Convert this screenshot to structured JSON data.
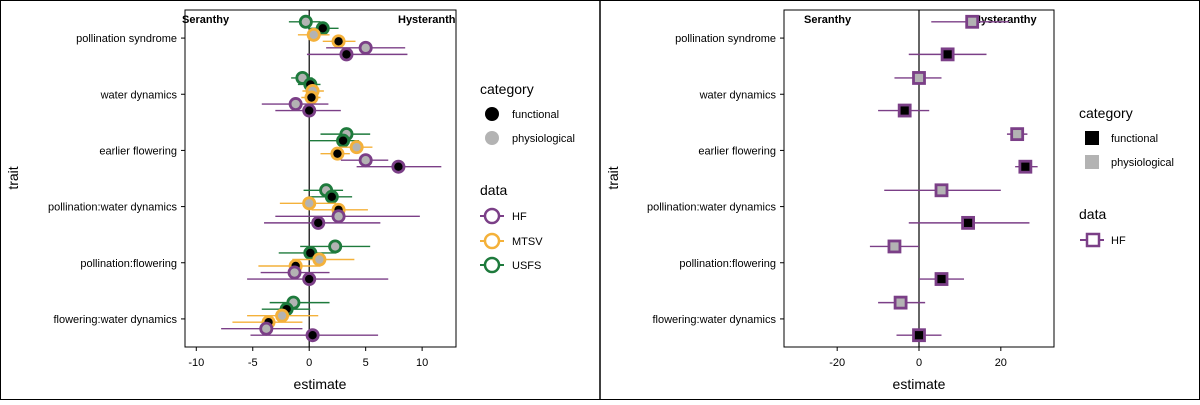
{
  "colors": {
    "HF": "#7b3f87",
    "MTSV": "#f4b13a",
    "USFS": "#1e7a3c",
    "functional_key": "#000000",
    "physiological_key": "#b3b3b3"
  },
  "chart_data": [
    {
      "type": "scatter",
      "panel": "left",
      "xlabel": "estimate",
      "ylabel": "trait",
      "xlim": [
        -11,
        13
      ],
      "xticks": [
        -10,
        -5,
        0,
        5,
        10
      ],
      "categories": [
        "pollination syndrome",
        "water dynamics",
        "earlier flowering",
        "pollination:water dynamics",
        "pollination:flowering",
        "flowering:water dynamics"
      ],
      "annotations": {
        "left": "Seranthy",
        "right": "Hysteranth"
      },
      "legend": {
        "category_title": "category",
        "category_items": [
          "functional",
          "physiological"
        ],
        "data_title": "data",
        "data_items": [
          "HF",
          "MTSV",
          "USFS"
        ]
      },
      "marker": "circle",
      "points": [
        {
          "trait": 0,
          "dataset": "USFS",
          "category": "physiological",
          "est": -0.3,
          "lo": -1.8,
          "hi": 1.0
        },
        {
          "trait": 0,
          "dataset": "USFS",
          "category": "functional",
          "est": 1.2,
          "lo": -0.1,
          "hi": 2.6
        },
        {
          "trait": 0,
          "dataset": "MTSV",
          "category": "physiological",
          "est": 0.4,
          "lo": -1.0,
          "hi": 1.8
        },
        {
          "trait": 0,
          "dataset": "MTSV",
          "category": "functional",
          "est": 2.6,
          "lo": 1.2,
          "hi": 4.1
        },
        {
          "trait": 0,
          "dataset": "HF",
          "category": "physiological",
          "est": 5.0,
          "lo": 1.5,
          "hi": 8.5
        },
        {
          "trait": 0,
          "dataset": "HF",
          "category": "functional",
          "est": 3.3,
          "lo": -0.2,
          "hi": 8.7
        },
        {
          "trait": 1,
          "dataset": "USFS",
          "category": "physiological",
          "est": -0.6,
          "lo": -1.6,
          "hi": 0.3
        },
        {
          "trait": 1,
          "dataset": "USFS",
          "category": "functional",
          "est": 0.1,
          "lo": -1.0,
          "hi": 1.0
        },
        {
          "trait": 1,
          "dataset": "MTSV",
          "category": "physiological",
          "est": 0.3,
          "lo": -0.6,
          "hi": 1.3
        },
        {
          "trait": 1,
          "dataset": "MTSV",
          "category": "functional",
          "est": 0.2,
          "lo": -0.7,
          "hi": 1.0
        },
        {
          "trait": 1,
          "dataset": "HF",
          "category": "physiological",
          "est": -1.2,
          "lo": -4.2,
          "hi": 1.7
        },
        {
          "trait": 1,
          "dataset": "HF",
          "category": "functional",
          "est": 0.0,
          "lo": -3.0,
          "hi": 2.8
        },
        {
          "trait": 2,
          "dataset": "USFS",
          "category": "physiological",
          "est": 3.3,
          "lo": 1.0,
          "hi": 5.4
        },
        {
          "trait": 2,
          "dataset": "USFS",
          "category": "functional",
          "est": 3.0,
          "lo": 0.0,
          "hi": 4.4
        },
        {
          "trait": 2,
          "dataset": "MTSV",
          "category": "physiological",
          "est": 4.2,
          "lo": 2.7,
          "hi": 5.6
        },
        {
          "trait": 2,
          "dataset": "MTSV",
          "category": "functional",
          "est": 2.5,
          "lo": 1.0,
          "hi": 3.6
        },
        {
          "trait": 2,
          "dataset": "HF",
          "category": "physiological",
          "est": 5.0,
          "lo": 2.8,
          "hi": 7.0
        },
        {
          "trait": 2,
          "dataset": "HF",
          "category": "functional",
          "est": 7.9,
          "lo": 4.2,
          "hi": 11.7
        },
        {
          "trait": 3,
          "dataset": "USFS",
          "category": "physiological",
          "est": 1.5,
          "lo": -0.5,
          "hi": 3.0
        },
        {
          "trait": 3,
          "dataset": "USFS",
          "category": "functional",
          "est": 2.0,
          "lo": 0.0,
          "hi": 3.8
        },
        {
          "trait": 3,
          "dataset": "MTSV",
          "category": "physiological",
          "est": 0.0,
          "lo": -2.6,
          "hi": 2.4
        },
        {
          "trait": 3,
          "dataset": "MTSV",
          "category": "functional",
          "est": 2.6,
          "lo": 0.2,
          "hi": 5.2
        },
        {
          "trait": 3,
          "dataset": "HF",
          "category": "physiological",
          "est": 2.6,
          "lo": -3.0,
          "hi": 9.8
        },
        {
          "trait": 3,
          "dataset": "HF",
          "category": "functional",
          "est": 0.8,
          "lo": -4.0,
          "hi": 6.3
        },
        {
          "trait": 4,
          "dataset": "USFS",
          "category": "physiological",
          "est": 2.3,
          "lo": -0.8,
          "hi": 5.4
        },
        {
          "trait": 4,
          "dataset": "USFS",
          "category": "functional",
          "est": 0.1,
          "lo": -2.7,
          "hi": 2.4
        },
        {
          "trait": 4,
          "dataset": "MTSV",
          "category": "physiological",
          "est": 0.9,
          "lo": -1.5,
          "hi": 4.0
        },
        {
          "trait": 4,
          "dataset": "MTSV",
          "category": "functional",
          "est": -1.2,
          "lo": -4.5,
          "hi": 1.0
        },
        {
          "trait": 4,
          "dataset": "HF",
          "category": "physiological",
          "est": -1.3,
          "lo": -4.3,
          "hi": 1.8
        },
        {
          "trait": 4,
          "dataset": "HF",
          "category": "functional",
          "est": 0.0,
          "lo": -5.5,
          "hi": 7.0
        },
        {
          "trait": 5,
          "dataset": "USFS",
          "category": "physiological",
          "est": -1.4,
          "lo": -3.5,
          "hi": 1.8
        },
        {
          "trait": 5,
          "dataset": "USFS",
          "category": "functional",
          "est": -2.0,
          "lo": -4.2,
          "hi": 0.1
        },
        {
          "trait": 5,
          "dataset": "MTSV",
          "category": "physiological",
          "est": -2.4,
          "lo": -5.5,
          "hi": 0.8
        },
        {
          "trait": 5,
          "dataset": "MTSV",
          "category": "functional",
          "est": -3.6,
          "lo": -6.8,
          "hi": -0.6
        },
        {
          "trait": 5,
          "dataset": "HF",
          "category": "physiological",
          "est": -3.8,
          "lo": -7.8,
          "hi": -0.6
        },
        {
          "trait": 5,
          "dataset": "HF",
          "category": "functional",
          "est": 0.3,
          "lo": -5.2,
          "hi": 6.1
        }
      ]
    },
    {
      "type": "scatter",
      "panel": "right",
      "xlabel": "estimate",
      "ylabel": "trait",
      "xlim": [
        -33,
        33
      ],
      "xticks": [
        -20,
        0,
        20
      ],
      "categories": [
        "pollination syndrome",
        "water dynamics",
        "earlier flowering",
        "pollination:water dynamics",
        "pollination:flowering",
        "flowering:water dynamics"
      ],
      "annotations": {
        "left": "Seranthy",
        "right": "Hysteranthy"
      },
      "legend": {
        "category_title": "category",
        "category_items": [
          "functional",
          "physiological"
        ],
        "data_title": "data",
        "data_items": [
          "HF"
        ]
      },
      "marker": "square",
      "points": [
        {
          "trait": 0,
          "dataset": "HF",
          "category": "physiological",
          "est": 13.0,
          "lo": 3.0,
          "hi": 22.0
        },
        {
          "trait": 0,
          "dataset": "HF",
          "category": "functional",
          "est": 7.0,
          "lo": -2.5,
          "hi": 16.5
        },
        {
          "trait": 1,
          "dataset": "HF",
          "category": "physiological",
          "est": 0.0,
          "lo": -6.0,
          "hi": 5.5
        },
        {
          "trait": 1,
          "dataset": "HF",
          "category": "functional",
          "est": -3.5,
          "lo": -10.0,
          "hi": 2.5
        },
        {
          "trait": 2,
          "dataset": "HF",
          "category": "physiological",
          "est": 24.0,
          "lo": 21.5,
          "hi": 26.5
        },
        {
          "trait": 2,
          "dataset": "HF",
          "category": "functional",
          "est": 26.0,
          "lo": 23.5,
          "hi": 29.0
        },
        {
          "trait": 3,
          "dataset": "HF",
          "category": "physiological",
          "est": 5.5,
          "lo": -8.5,
          "hi": 20.0
        },
        {
          "trait": 3,
          "dataset": "HF",
          "category": "functional",
          "est": 12.0,
          "lo": -2.5,
          "hi": 27.0
        },
        {
          "trait": 4,
          "dataset": "HF",
          "category": "physiological",
          "est": -6.0,
          "lo": -12.0,
          "hi": 0.0
        },
        {
          "trait": 4,
          "dataset": "HF",
          "category": "functional",
          "est": 5.5,
          "lo": 0.0,
          "hi": 11.0
        },
        {
          "trait": 5,
          "dataset": "HF",
          "category": "physiological",
          "est": -4.5,
          "lo": -10.0,
          "hi": 1.5
        },
        {
          "trait": 5,
          "dataset": "HF",
          "category": "functional",
          "est": 0.0,
          "lo": -5.5,
          "hi": 5.5
        }
      ]
    }
  ]
}
